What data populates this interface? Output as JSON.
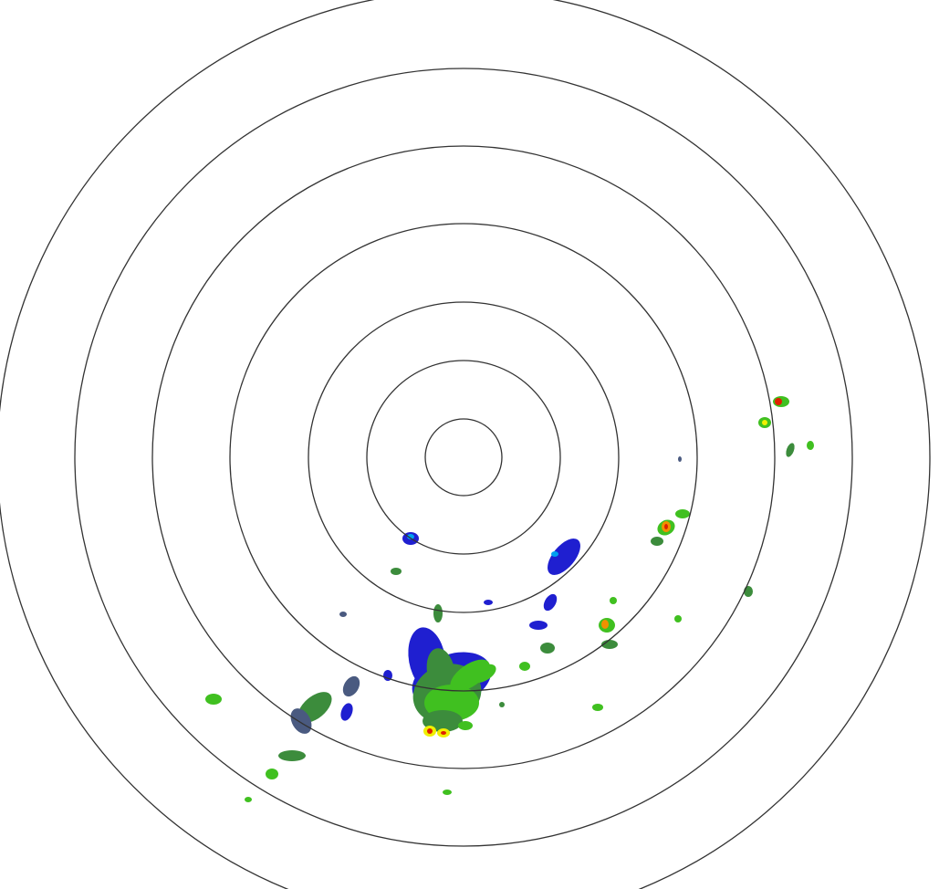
{
  "radar": {
    "range_ring_count": 7,
    "ring_color": "#333333",
    "background": "#ffffff",
    "reflectivity_colors": {
      "light_blue": "#00a0f0",
      "blue": "#1f1fd0",
      "slate": "#4a5a80",
      "dark_green": "#3c8c3c",
      "green": "#40c020",
      "bright_green": "#80e020",
      "yellow": "#f0f000",
      "orange": "#f09000",
      "red": "#e02000"
    }
  }
}
